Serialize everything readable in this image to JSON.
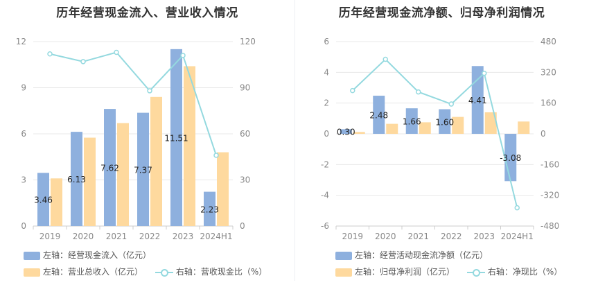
{
  "colors": {
    "bar1": "#8eb0de",
    "bar2": "#fed99e",
    "line": "#94d9df",
    "grid": "#e8e8e8",
    "axis_text": "#888888"
  },
  "chart_data": [
    {
      "type": "bar",
      "title": "历年经营现金流入、营业收入情况",
      "categories": [
        "2019",
        "2020",
        "2021",
        "2022",
        "2023",
        "2024H1"
      ],
      "y_left": {
        "ylim": [
          0,
          12
        ],
        "ticks": [
          "0",
          "3",
          "6",
          "9",
          "12"
        ]
      },
      "y_right": {
        "ylim": [
          0,
          120
        ],
        "ticks": [
          "0",
          "30",
          "60",
          "90",
          "120"
        ]
      },
      "series": [
        {
          "name": "经营现金流入（亿元）",
          "axis_label": "左轴：",
          "axis": "left",
          "type": "bar",
          "values": [
            3.46,
            6.13,
            7.62,
            7.37,
            11.51,
            2.23
          ],
          "labels": [
            "3.46",
            "6.13",
            "7.62",
            "7.37",
            "11.51",
            "2.23"
          ]
        },
        {
          "name": "营业总收入（亿元）",
          "axis_label": "左轴：",
          "axis": "left",
          "type": "bar",
          "values": [
            3.1,
            5.75,
            6.7,
            8.4,
            10.4,
            4.8
          ]
        },
        {
          "name": "营收现金比（%）",
          "axis_label": "右轴：",
          "axis": "right",
          "type": "line",
          "values": [
            112,
            107,
            113,
            88,
            111,
            46
          ]
        }
      ]
    },
    {
      "type": "bar",
      "title": "历年经营现金流净额、归母净利润情况",
      "categories": [
        "2019",
        "2020",
        "2021",
        "2022",
        "2023",
        "2024H1"
      ],
      "y_left": {
        "ylim": [
          -6,
          6
        ],
        "ticks": [
          "-6",
          "-4",
          "-2",
          "0",
          "2",
          "4",
          "6"
        ]
      },
      "y_right": {
        "ylim": [
          -480,
          480
        ],
        "ticks": [
          "-480",
          "-320",
          "-160",
          "0",
          "160",
          "320",
          "480"
        ]
      },
      "series": [
        {
          "name": "经营活动现金流净额（亿元）",
          "axis_label": "左轴：",
          "axis": "left",
          "type": "bar",
          "values": [
            0.3,
            2.48,
            1.66,
            1.6,
            4.41,
            -3.08
          ],
          "labels": [
            "0.30",
            "2.48",
            "1.66",
            "1.60",
            "4.41",
            "-3.08"
          ]
        },
        {
          "name": "归母净利润（亿元）",
          "axis_label": "左轴：",
          "axis": "left",
          "type": "bar",
          "values": [
            0.12,
            0.65,
            0.75,
            1.1,
            1.4,
            0.8
          ]
        },
        {
          "name": "净现比（%）",
          "axis_label": "右轴：",
          "axis": "right",
          "type": "line",
          "values": [
            225,
            388,
            218,
            155,
            315,
            -385
          ]
        }
      ]
    }
  ]
}
